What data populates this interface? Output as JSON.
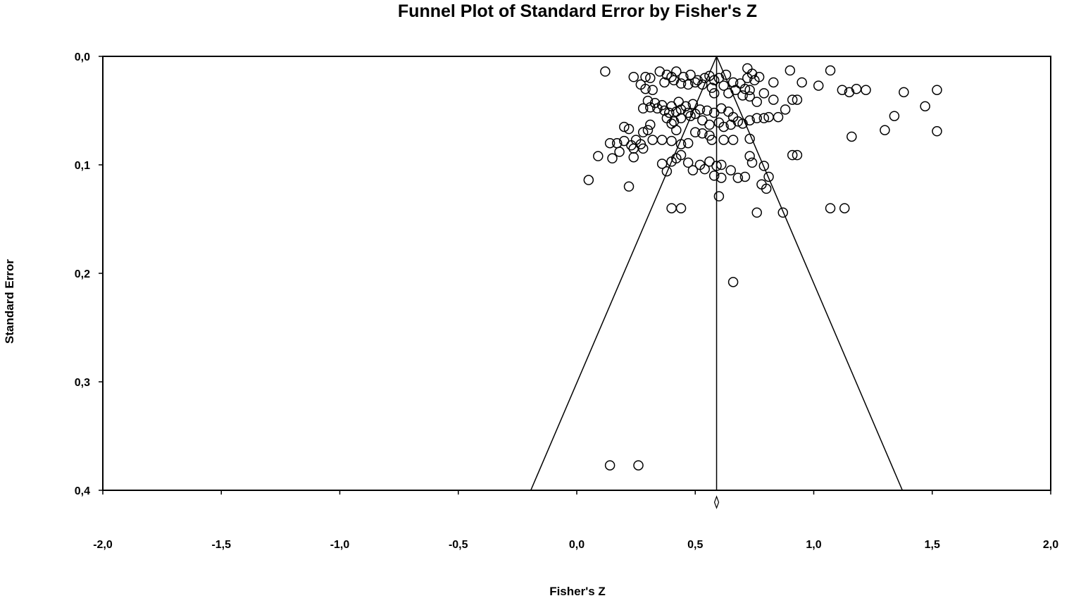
{
  "chart_data": {
    "type": "scatter",
    "title": "Funnel Plot of Standard Error by Fisher's Z",
    "xlabel": "Fisher's Z",
    "ylabel": "Standard Error",
    "xlim": [
      -2.0,
      2.0
    ],
    "ylim": [
      0.0,
      0.4
    ],
    "y_inverted": true,
    "x_ticks": [
      "-2,0",
      "-1,5",
      "-1,0",
      "-0,5",
      "0,0",
      "0,5",
      "1,0",
      "1,5",
      "2,0"
    ],
    "y_ticks": [
      "0,0",
      "0,1",
      "0,2",
      "0,3",
      "0,4"
    ],
    "x_tick_values": [
      -2.0,
      -1.5,
      -1.0,
      -0.5,
      0.0,
      0.5,
      1.0,
      1.5,
      2.0
    ],
    "y_tick_values": [
      0.0,
      0.1,
      0.2,
      0.3,
      0.4
    ],
    "combined_effect": 0.59,
    "funnel_z": 1.96,
    "grid": false,
    "points": [
      [
        0.12,
        0.014
      ],
      [
        0.24,
        0.019
      ],
      [
        0.29,
        0.019
      ],
      [
        0.31,
        0.02
      ],
      [
        0.35,
        0.014
      ],
      [
        0.38,
        0.017
      ],
      [
        0.4,
        0.019
      ],
      [
        0.42,
        0.014
      ],
      [
        0.45,
        0.019
      ],
      [
        0.48,
        0.017
      ],
      [
        0.51,
        0.022
      ],
      [
        0.54,
        0.02
      ],
      [
        0.56,
        0.018
      ],
      [
        0.58,
        0.022
      ],
      [
        0.6,
        0.02
      ],
      [
        0.63,
        0.017
      ],
      [
        0.66,
        0.024
      ],
      [
        0.72,
        0.011
      ],
      [
        0.72,
        0.02
      ],
      [
        0.74,
        0.016
      ],
      [
        0.75,
        0.022
      ],
      [
        0.77,
        0.019
      ],
      [
        0.69,
        0.025
      ],
      [
        0.71,
        0.03
      ],
      [
        0.73,
        0.031
      ],
      [
        0.83,
        0.024
      ],
      [
        0.9,
        0.013
      ],
      [
        0.95,
        0.024
      ],
      [
        1.02,
        0.027
      ],
      [
        1.07,
        0.013
      ],
      [
        1.12,
        0.031
      ],
      [
        1.15,
        0.033
      ],
      [
        1.18,
        0.03
      ],
      [
        1.22,
        0.031
      ],
      [
        1.38,
        0.033
      ],
      [
        1.52,
        0.031
      ],
      [
        1.47,
        0.046
      ],
      [
        1.34,
        0.055
      ],
      [
        1.3,
        0.068
      ],
      [
        1.52,
        0.069
      ],
      [
        1.16,
        0.074
      ],
      [
        0.27,
        0.026
      ],
      [
        0.29,
        0.03
      ],
      [
        0.32,
        0.031
      ],
      [
        0.37,
        0.024
      ],
      [
        0.41,
        0.022
      ],
      [
        0.44,
        0.025
      ],
      [
        0.47,
        0.026
      ],
      [
        0.5,
        0.024
      ],
      [
        0.53,
        0.026
      ],
      [
        0.57,
        0.029
      ],
      [
        0.58,
        0.034
      ],
      [
        0.62,
        0.027
      ],
      [
        0.64,
        0.034
      ],
      [
        0.67,
        0.031
      ],
      [
        0.7,
        0.036
      ],
      [
        0.73,
        0.037
      ],
      [
        0.76,
        0.042
      ],
      [
        0.79,
        0.034
      ],
      [
        0.83,
        0.04
      ],
      [
        0.91,
        0.04
      ],
      [
        0.93,
        0.04
      ],
      [
        0.88,
        0.049
      ],
      [
        0.85,
        0.056
      ],
      [
        0.81,
        0.056
      ],
      [
        0.79,
        0.057
      ],
      [
        0.76,
        0.057
      ],
      [
        0.73,
        0.059
      ],
      [
        0.3,
        0.041
      ],
      [
        0.33,
        0.043
      ],
      [
        0.36,
        0.045
      ],
      [
        0.4,
        0.046
      ],
      [
        0.43,
        0.042
      ],
      [
        0.46,
        0.046
      ],
      [
        0.49,
        0.044
      ],
      [
        0.52,
        0.049
      ],
      [
        0.55,
        0.05
      ],
      [
        0.58,
        0.052
      ],
      [
        0.61,
        0.048
      ],
      [
        0.64,
        0.051
      ],
      [
        0.66,
        0.056
      ],
      [
        0.28,
        0.048
      ],
      [
        0.31,
        0.047
      ],
      [
        0.34,
        0.048
      ],
      [
        0.37,
        0.05
      ],
      [
        0.39,
        0.052
      ],
      [
        0.42,
        0.051
      ],
      [
        0.44,
        0.049
      ],
      [
        0.47,
        0.052
      ],
      [
        0.5,
        0.053
      ],
      [
        0.38,
        0.057
      ],
      [
        0.41,
        0.06
      ],
      [
        0.44,
        0.057
      ],
      [
        0.48,
        0.055
      ],
      [
        0.53,
        0.059
      ],
      [
        0.56,
        0.063
      ],
      [
        0.6,
        0.061
      ],
      [
        0.62,
        0.065
      ],
      [
        0.65,
        0.063
      ],
      [
        0.68,
        0.06
      ],
      [
        0.7,
        0.062
      ],
      [
        0.73,
        0.076
      ],
      [
        0.31,
        0.063
      ],
      [
        0.3,
        0.068
      ],
      [
        0.28,
        0.07
      ],
      [
        0.4,
        0.062
      ],
      [
        0.42,
        0.068
      ],
      [
        0.5,
        0.07
      ],
      [
        0.53,
        0.071
      ],
      [
        0.56,
        0.073
      ],
      [
        0.2,
        0.065
      ],
      [
        0.22,
        0.067
      ],
      [
        0.14,
        0.08
      ],
      [
        0.17,
        0.08
      ],
      [
        0.2,
        0.078
      ],
      [
        0.23,
        0.082
      ],
      [
        0.25,
        0.077
      ],
      [
        0.27,
        0.081
      ],
      [
        0.24,
        0.085
      ],
      [
        0.28,
        0.085
      ],
      [
        0.32,
        0.077
      ],
      [
        0.36,
        0.077
      ],
      [
        0.4,
        0.078
      ],
      [
        0.44,
        0.081
      ],
      [
        0.47,
        0.08
      ],
      [
        0.57,
        0.077
      ],
      [
        0.62,
        0.077
      ],
      [
        0.66,
        0.077
      ],
      [
        0.09,
        0.092
      ],
      [
        0.15,
        0.094
      ],
      [
        0.18,
        0.088
      ],
      [
        0.24,
        0.093
      ],
      [
        0.36,
        0.099
      ],
      [
        0.38,
        0.106
      ],
      [
        0.4,
        0.097
      ],
      [
        0.42,
        0.094
      ],
      [
        0.44,
        0.091
      ],
      [
        0.47,
        0.098
      ],
      [
        0.49,
        0.105
      ],
      [
        0.52,
        0.1
      ],
      [
        0.54,
        0.104
      ],
      [
        0.56,
        0.097
      ],
      [
        0.59,
        0.101
      ],
      [
        0.61,
        0.1
      ],
      [
        0.58,
        0.11
      ],
      [
        0.61,
        0.112
      ],
      [
        0.65,
        0.105
      ],
      [
        0.68,
        0.112
      ],
      [
        0.71,
        0.111
      ],
      [
        0.73,
        0.092
      ],
      [
        0.74,
        0.098
      ],
      [
        0.79,
        0.101
      ],
      [
        0.81,
        0.111
      ],
      [
        0.78,
        0.118
      ],
      [
        0.8,
        0.122
      ],
      [
        0.91,
        0.091
      ],
      [
        0.93,
        0.091
      ],
      [
        0.05,
        0.114
      ],
      [
        0.22,
        0.12
      ],
      [
        0.6,
        0.129
      ],
      [
        0.4,
        0.14
      ],
      [
        0.44,
        0.14
      ],
      [
        1.07,
        0.14
      ],
      [
        1.13,
        0.14
      ],
      [
        0.76,
        0.144
      ],
      [
        0.87,
        0.144
      ],
      [
        0.66,
        0.208
      ],
      [
        0.14,
        0.377
      ],
      [
        0.26,
        0.377
      ]
    ]
  }
}
